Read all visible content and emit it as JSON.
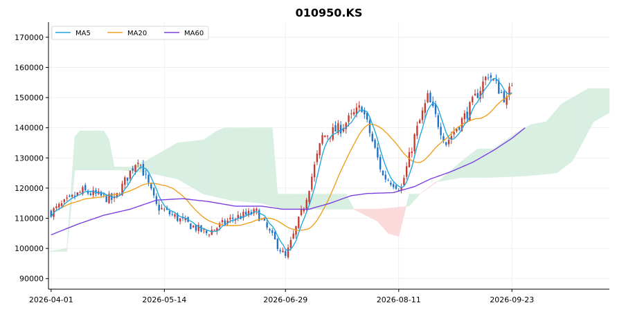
{
  "chart_data": {
    "type": "candlestick",
    "title": "010950.KS",
    "xlabel": "",
    "ylabel": "",
    "ylim": [
      86500,
      175000
    ],
    "y_ticks": [
      90000,
      100000,
      110000,
      120000,
      130000,
      140000,
      150000,
      160000,
      170000
    ],
    "y_tick_labels": [
      "90000",
      "100000",
      "110000",
      "120000",
      "130000",
      "140000",
      "150000",
      "160000",
      "170000"
    ],
    "x_ticks": [
      {
        "day": 0,
        "label": "2026-04-01"
      },
      {
        "day": 43,
        "label": "2026-05-14"
      },
      {
        "day": 89,
        "label": "2026-06-29"
      },
      {
        "day": 132,
        "label": "2026-08-11"
      },
      {
        "day": 175,
        "label": "2026-09-23"
      }
    ],
    "xlim_days": [
      -1,
      212
    ],
    "grid": true,
    "legend": {
      "position": "top-left",
      "entries": [
        "MA5",
        "MA20",
        "MA60"
      ]
    },
    "colors": {
      "up": "#c43a32",
      "down": "#1f6fc4",
      "ma5": "#22a6e0",
      "ma20": "#f0a020",
      "ma60": "#7b3fe0",
      "cloud_bull": "#d9efe2",
      "cloud_bear": "#fadada"
    },
    "ohlc_anchors": {
      "days": [
        0,
        12,
        24,
        33,
        40,
        50,
        59,
        69,
        78,
        89,
        96,
        103,
        110,
        118,
        126,
        133,
        138,
        143,
        150,
        158,
        166,
        173,
        175
      ],
      "close": [
        112000,
        119000,
        116000,
        130000,
        114000,
        109000,
        105000,
        110000,
        112000,
        97000,
        114000,
        137000,
        140000,
        147000,
        124000,
        120000,
        137000,
        150000,
        135000,
        145000,
        158000,
        149000,
        155000
      ]
    },
    "ohlc_seed": 7,
    "series": [
      {
        "name": "MA5",
        "lag": 2
      },
      {
        "name": "MA20",
        "lag": 9
      },
      {
        "name": "MA60",
        "points": [
          [
            0,
            104500
          ],
          [
            10,
            108000
          ],
          [
            20,
            111000
          ],
          [
            30,
            113000
          ],
          [
            40,
            116000
          ],
          [
            50,
            116500
          ],
          [
            60,
            115500
          ],
          [
            70,
            114000
          ],
          [
            80,
            114000
          ],
          [
            88,
            113000
          ],
          [
            98,
            113000
          ],
          [
            106,
            115000
          ],
          [
            114,
            117500
          ],
          [
            120,
            118200
          ],
          [
            130,
            118500
          ],
          [
            138,
            120500
          ],
          [
            144,
            123000
          ],
          [
            152,
            125500
          ],
          [
            160,
            128500
          ],
          [
            168,
            132500
          ],
          [
            175,
            136500
          ],
          [
            180,
            140000
          ]
        ]
      }
    ],
    "ichimoku_cloud": {
      "span_a": [
        [
          -1,
          99000
        ],
        [
          6,
          100000
        ],
        [
          9,
          137000
        ],
        [
          11,
          139000
        ],
        [
          20,
          139000
        ],
        [
          22,
          136000
        ],
        [
          24,
          127000
        ],
        [
          30,
          127000
        ],
        [
          36,
          129000
        ],
        [
          42,
          132000
        ],
        [
          48,
          135000
        ],
        [
          58,
          136000
        ],
        [
          63,
          139000
        ],
        [
          66,
          140000
        ],
        [
          84,
          140000
        ],
        [
          86,
          118000
        ],
        [
          92,
          118000
        ],
        [
          100,
          118000
        ],
        [
          112,
          118000
        ],
        [
          115,
          113000
        ],
        [
          124,
          109000
        ],
        [
          128,
          105000
        ],
        [
          132,
          104000
        ],
        [
          136,
          118000
        ],
        [
          140,
          118000
        ],
        [
          148,
          123000
        ],
        [
          156,
          129000
        ],
        [
          162,
          133000
        ],
        [
          168,
          133000
        ],
        [
          176,
          138000
        ],
        [
          182,
          141000
        ],
        [
          188,
          142000
        ],
        [
          194,
          148000
        ],
        [
          204,
          153000
        ],
        [
          212,
          153000
        ]
      ],
      "span_b": [
        [
          -1,
          99000
        ],
        [
          6,
          99000
        ],
        [
          9,
          126000
        ],
        [
          20,
          126000
        ],
        [
          26,
          126000
        ],
        [
          32,
          125500
        ],
        [
          40,
          124500
        ],
        [
          48,
          123000
        ],
        [
          58,
          118000
        ],
        [
          68,
          116000
        ],
        [
          80,
          115000
        ],
        [
          88,
          113000
        ],
        [
          98,
          113000
        ],
        [
          110,
          113000
        ],
        [
          124,
          113000
        ],
        [
          130,
          113500
        ],
        [
          136,
          114000
        ],
        [
          140,
          118000
        ],
        [
          146,
          122000
        ],
        [
          156,
          123500
        ],
        [
          166,
          123500
        ],
        [
          180,
          124000
        ],
        [
          192,
          125000
        ],
        [
          198,
          129000
        ],
        [
          206,
          142000
        ],
        [
          212,
          145000
        ]
      ]
    }
  }
}
